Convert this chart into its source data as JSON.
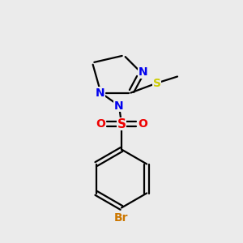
{
  "bg_color": "#ebebeb",
  "atom_colors": {
    "N": "#0000ee",
    "S_sulfonyl": "#ee0000",
    "S_thioether": "#cccc00",
    "O": "#ee0000",
    "Br": "#cc7700",
    "C": "#000000"
  },
  "bond_color": "#000000",
  "bond_width": 1.6,
  "figsize": [
    3.0,
    3.0
  ],
  "dpi": 100
}
